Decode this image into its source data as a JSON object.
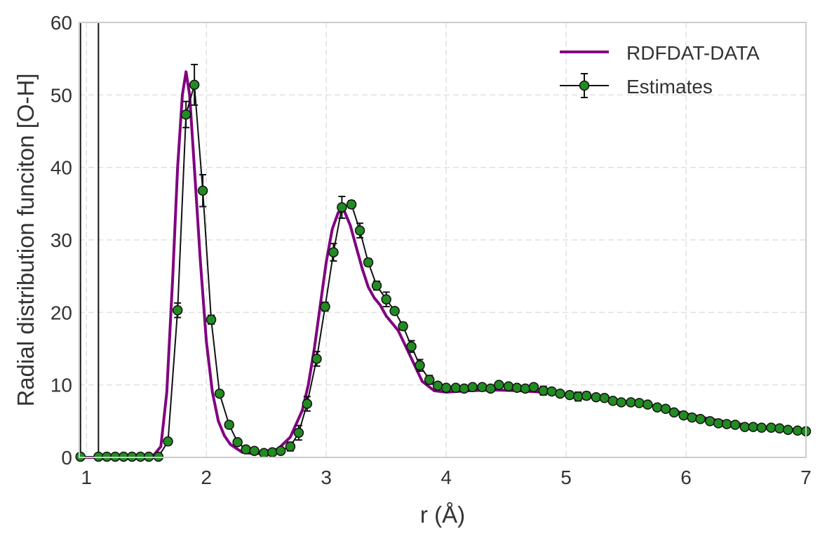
{
  "chart_data": {
    "type": "line",
    "title": "",
    "xlabel": "r (Å)",
    "ylabel": "Radial distribution funciton [O-H]",
    "xlim": [
      0.94,
      7.0
    ],
    "ylim": [
      0,
      60
    ],
    "xticks": [
      1,
      2,
      3,
      4,
      5,
      6,
      7
    ],
    "yticks": [
      0,
      10,
      20,
      30,
      40,
      50,
      60
    ],
    "grid": true,
    "legend_position": "top-right",
    "colors": {
      "reference": "#800080",
      "estimates_fill": "#228b22",
      "estimates_line": "#111111",
      "grid": "#e0e0e0",
      "frame": "#cccccc"
    },
    "series": [
      {
        "name": "RDFDAT-DATA",
        "style": "line",
        "x": [
          0.94,
          1.0,
          1.2,
          1.4,
          1.55,
          1.62,
          1.67,
          1.72,
          1.76,
          1.8,
          1.83,
          1.86,
          1.9,
          1.95,
          2.0,
          2.05,
          2.1,
          2.15,
          2.2,
          2.3,
          2.4,
          2.5,
          2.6,
          2.7,
          2.8,
          2.85,
          2.9,
          2.95,
          3.0,
          3.05,
          3.1,
          3.15,
          3.2,
          3.25,
          3.3,
          3.35,
          3.4,
          3.45,
          3.5,
          3.6,
          3.7,
          3.8,
          3.9,
          4.0,
          4.2,
          4.4,
          4.6,
          4.8,
          5.0,
          5.2,
          5.4,
          5.6,
          5.8,
          6.0,
          6.2,
          6.4,
          6.6,
          6.8,
          7.0
        ],
        "y": [
          0,
          0,
          0,
          0,
          0.1,
          1.5,
          9,
          25,
          40,
          50,
          53.2,
          50,
          40,
          27,
          16,
          9,
          5,
          3,
          1.8,
          0.7,
          0.5,
          0.6,
          1.2,
          2.8,
          6.5,
          10,
          15,
          21,
          27,
          31.5,
          33.8,
          34,
          32,
          29,
          26,
          23.5,
          22,
          21,
          19.5,
          17.5,
          14,
          10.5,
          9.2,
          9,
          9.2,
          9.3,
          9.2,
          9,
          8.7,
          8.3,
          7.9,
          7.5,
          6.9,
          6.0,
          5.3,
          4.7,
          4.3,
          4.0,
          3.7
        ]
      },
      {
        "name": "Estimates",
        "style": "errorbar",
        "x": [
          0.95,
          1.1,
          1.17,
          1.24,
          1.31,
          1.38,
          1.45,
          1.52,
          1.6,
          1.68,
          1.76,
          1.83,
          1.9,
          1.97,
          2.04,
          2.11,
          2.19,
          2.26,
          2.33,
          2.4,
          2.48,
          2.55,
          2.62,
          2.7,
          2.77,
          2.84,
          2.92,
          2.99,
          3.06,
          3.13,
          3.21,
          3.28,
          3.35,
          3.42,
          3.5,
          3.57,
          3.64,
          3.71,
          3.78,
          3.86,
          3.93,
          4.0,
          4.08,
          4.15,
          4.22,
          4.3,
          4.37,
          4.44,
          4.52,
          4.59,
          4.66,
          4.73,
          4.81,
          4.88,
          4.95,
          5.03,
          5.1,
          5.17,
          5.25,
          5.32,
          5.39,
          5.46,
          5.54,
          5.61,
          5.68,
          5.76,
          5.83,
          5.9,
          5.98,
          6.05,
          6.12,
          6.2,
          6.27,
          6.34,
          6.41,
          6.49,
          6.56,
          6.63,
          6.71,
          6.78,
          6.85,
          6.93,
          7.0
        ],
        "y": [
          0.1,
          0.1,
          0.1,
          0.1,
          0.1,
          0.1,
          0.1,
          0.1,
          0.1,
          2.2,
          20.3,
          47.3,
          51.4,
          36.8,
          19.0,
          8.8,
          4.5,
          2.1,
          1.1,
          0.9,
          0.6,
          0.7,
          0.9,
          1.5,
          3.4,
          7.4,
          13.6,
          20.8,
          28.3,
          34.5,
          34.9,
          31.3,
          26.9,
          23.7,
          21.8,
          20.2,
          18.1,
          15.3,
          12.7,
          10.7,
          9.9,
          9.6,
          9.6,
          9.5,
          9.7,
          9.7,
          9.5,
          10.0,
          9.8,
          9.6,
          9.5,
          9.7,
          9.2,
          9.1,
          8.8,
          8.6,
          8.4,
          8.5,
          8.3,
          8.2,
          7.8,
          7.6,
          7.6,
          7.5,
          7.3,
          6.9,
          6.7,
          6.2,
          5.8,
          5.5,
          5.3,
          5.0,
          4.7,
          4.6,
          4.5,
          4.2,
          4.2,
          4.1,
          4.1,
          4.0,
          3.8,
          3.7,
          3.6
        ],
        "yerr": [
          0,
          0,
          0,
          0,
          0,
          0,
          0,
          0,
          0,
          0.4,
          1.0,
          1.8,
          2.8,
          2.2,
          0.6,
          0.3,
          0.2,
          0.1,
          0,
          0,
          0,
          0,
          0,
          0.6,
          1.0,
          1.0,
          1.0,
          0.6,
          1.2,
          1.5,
          0.5,
          1.0,
          0.5,
          0.6,
          1.0,
          0.3,
          0.5,
          0.8,
          0.8,
          0.6,
          0.3,
          0.2,
          0.2,
          0.2,
          0.3,
          0.3,
          0.2,
          0.3,
          0.2,
          0.2,
          0.3,
          0.4,
          0.6,
          0.3,
          0.2,
          0.2,
          0.6,
          0.5,
          0.3,
          0.2,
          0.2,
          0.2,
          0.2,
          0.2,
          0.2,
          0.3,
          0.2,
          0.2,
          0.2,
          0.2,
          0.2,
          0.2,
          0.2,
          0.2,
          0.2,
          0.2,
          0.2,
          0.2,
          0.2,
          0.2,
          0.2,
          0.2,
          0.2
        ]
      }
    ],
    "reference_lines_x": [
      0.95,
      1.1
    ]
  }
}
